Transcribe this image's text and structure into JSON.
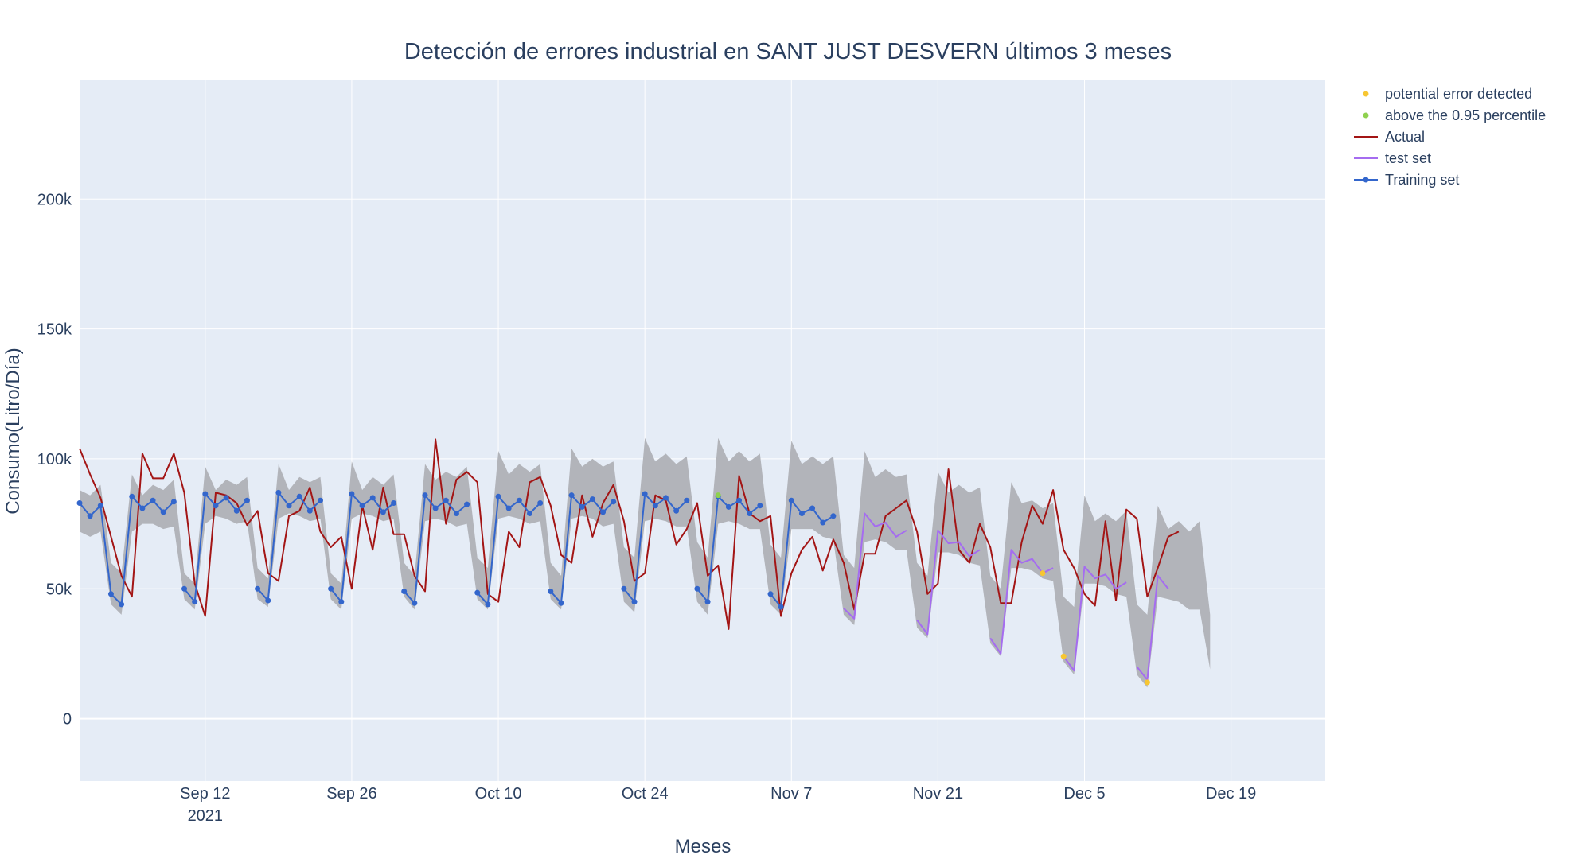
{
  "chart_data": {
    "type": "line",
    "title": "Detección de errores industrial en SANT JUST DESVERN últimos 3 meses",
    "xlabel": "Meses",
    "ylabel": "Consumo(Litro/Día)",
    "xlim": [
      "2021-08-31",
      "2021-12-28"
    ],
    "ylim": [
      -24000,
      246000
    ],
    "x_ticks": [
      {
        "date": "2021-09-12",
        "label": "Sep 12",
        "sublabel": "2021"
      },
      {
        "date": "2021-09-26",
        "label": "Sep 26",
        "sublabel": ""
      },
      {
        "date": "2021-10-10",
        "label": "Oct 10",
        "sublabel": ""
      },
      {
        "date": "2021-10-24",
        "label": "Oct 24",
        "sublabel": ""
      },
      {
        "date": "2021-11-07",
        "label": "Nov 7",
        "sublabel": ""
      },
      {
        "date": "2021-11-21",
        "label": "Nov 21",
        "sublabel": ""
      },
      {
        "date": "2021-12-05",
        "label": "Dec 5",
        "sublabel": ""
      },
      {
        "date": "2021-12-19",
        "label": "Dec 19",
        "sublabel": ""
      }
    ],
    "y_ticks": [
      {
        "value": 0,
        "label": "0"
      },
      {
        "value": 50000,
        "label": "50k"
      },
      {
        "value": 100000,
        "label": "100k"
      },
      {
        "value": 150000,
        "label": "150k"
      },
      {
        "value": 200000,
        "label": "200k"
      }
    ],
    "legend_position": "top-right, outside plot",
    "colors": {
      "plot_bg": "#e5ecf6",
      "grid": "#ffffff",
      "band": "#b2b4ba",
      "actual": "#a31515",
      "test": "#a56cf0",
      "training": "#3366cc",
      "error": "#f7c632",
      "above": "#8fd14f"
    },
    "legend": [
      {
        "name": "potential error detected",
        "kind": "dot",
        "color": "#f7c632"
      },
      {
        "name": "above the 0.95 percentile",
        "kind": "dot",
        "color": "#8fd14f"
      },
      {
        "name": "Actual",
        "kind": "line",
        "color": "#a31515"
      },
      {
        "name": "test set",
        "kind": "line",
        "color": "#a56cf0"
      },
      {
        "name": "Training set",
        "kind": "line-marker",
        "color": "#3366cc"
      }
    ],
    "start_date": "2021-08-31",
    "actual": [
      104000,
      94000,
      85000,
      70000,
      55000,
      47000,
      102000,
      92500,
      92500,
      102000,
      87000,
      52000,
      39500,
      87000,
      86000,
      83000,
      74500,
      80000,
      56000,
      53000,
      78000,
      80000,
      89000,
      72000,
      66000,
      70000,
      50000,
      82000,
      65000,
      89000,
      71000,
      71000,
      55000,
      49000,
      107500,
      75000,
      92000,
      95000,
      91000,
      48000,
      45000,
      72000,
      66000,
      91000,
      93000,
      82000,
      63000,
      60000,
      86000,
      70000,
      83000,
      90000,
      76000,
      53000,
      56000,
      86000,
      84000,
      67000,
      73000,
      83000,
      55000,
      59000,
      34500,
      93500,
      79000,
      76000,
      78000,
      39500,
      56000,
      65000,
      70000,
      57000,
      69000,
      60000,
      42000,
      63500,
      63500,
      78000,
      81000,
      84000,
      72000,
      48000,
      52000,
      96000,
      65000,
      60000,
      75000,
      66000,
      44500,
      44500,
      68000,
      82000,
      75000,
      88000,
      65000,
      58000,
      48000,
      43500,
      76000,
      45500,
      80500,
      77000,
      47000,
      58000,
      70000,
      72000
    ],
    "upper": [
      88000,
      86000,
      90000,
      60000,
      56000,
      94000,
      86000,
      90000,
      88000,
      92000,
      56000,
      52000,
      97000,
      88000,
      92000,
      90000,
      93000,
      58000,
      54000,
      98000,
      88000,
      93000,
      91000,
      93000,
      56000,
      52000,
      99000,
      88000,
      93000,
      90000,
      94000,
      60000,
      55000,
      98000,
      92000,
      95000,
      93000,
      97000,
      62000,
      58000,
      103000,
      94000,
      98000,
      95000,
      98000,
      60000,
      55000,
      104000,
      97000,
      100000,
      97000,
      99000,
      66000,
      62000,
      108000,
      99000,
      102000,
      98000,
      101000,
      68000,
      62000,
      108000,
      99000,
      103000,
      99000,
      102000,
      67000,
      62000,
      107000,
      98000,
      101000,
      98000,
      101000,
      63000,
      58000,
      103000,
      93000,
      96000,
      93000,
      94000,
      60000,
      55000,
      95000,
      87000,
      90000,
      87000,
      89000,
      55000,
      50000,
      91000,
      83000,
      84000,
      81000,
      83000,
      47000,
      43000,
      86000,
      76000,
      79000,
      76000,
      80000,
      44000,
      40000,
      82000,
      73000,
      76000,
      72000,
      76000,
      40000
    ],
    "lower": [
      72000,
      70000,
      72000,
      44000,
      40000,
      72000,
      75000,
      75000,
      73000,
      74000,
      46000,
      42000,
      75000,
      78000,
      77000,
      75000,
      76000,
      46000,
      43000,
      77000,
      79000,
      78000,
      76000,
      77000,
      46000,
      42000,
      77000,
      79000,
      78000,
      76000,
      77000,
      47000,
      42000,
      76000,
      77000,
      76000,
      74000,
      75000,
      46000,
      42000,
      77000,
      78000,
      77000,
      75000,
      76000,
      46000,
      42000,
      77000,
      78000,
      77000,
      74000,
      75000,
      45000,
      41000,
      76000,
      77000,
      76000,
      74000,
      74000,
      45000,
      40000,
      75000,
      76000,
      75000,
      73000,
      73000,
      44000,
      40000,
      73000,
      73000,
      73000,
      70000,
      69000,
      40000,
      36000,
      68000,
      69000,
      68000,
      65000,
      65000,
      35000,
      31000,
      64000,
      64000,
      63000,
      60000,
      59000,
      29000,
      24000,
      58000,
      58000,
      57000,
      54000,
      53000,
      22000,
      17000,
      52000,
      52000,
      51000,
      48000,
      47000,
      17000,
      12000,
      47000,
      46000,
      45000,
      42000,
      42000,
      19000
    ],
    "training": [
      {
        "start": 0,
        "values": [
          83000,
          78000,
          82000,
          48000,
          44000,
          85500,
          81000,
          84000,
          79500,
          83500
        ]
      },
      {
        "start": 10,
        "values": [
          50000,
          45000,
          86500,
          82000,
          85000,
          80000,
          84000
        ]
      },
      {
        "start": 17,
        "values": [
          50000,
          45500,
          87000,
          82000,
          85500,
          80000,
          84000
        ]
      },
      {
        "start": 24,
        "values": [
          50000,
          45000,
          86500,
          82000,
          85000,
          79500,
          83000
        ]
      },
      {
        "start": 31,
        "values": [
          49000,
          44500,
          86000,
          81000,
          84000,
          79000,
          82500
        ]
      },
      {
        "start": 38,
        "values": [
          48500,
          44000,
          85500,
          81000,
          84000,
          79000,
          83000
        ]
      },
      {
        "start": 45,
        "values": [
          49000,
          44500,
          86000,
          81500,
          84500,
          79500,
          83500
        ]
      },
      {
        "start": 52,
        "values": [
          50000,
          45000,
          86500,
          82000,
          85000,
          80000,
          84000
        ]
      },
      {
        "start": 59,
        "values": [
          50000,
          45000,
          85500,
          81500,
          84000,
          79000,
          82000
        ]
      },
      {
        "start": 66,
        "values": [
          48000,
          43000,
          84000,
          79000,
          81000,
          75500,
          78000
        ]
      }
    ],
    "test": [
      {
        "start": 73,
        "values": [
          42500,
          38500,
          79000,
          74000,
          75500,
          70000,
          72500
        ]
      },
      {
        "start": 80,
        "values": [
          38000,
          32500,
          72500,
          67500,
          68000,
          62500,
          65000
        ]
      },
      {
        "start": 87,
        "values": [
          31000,
          25000,
          65000,
          60000,
          61500,
          56000,
          58000
        ]
      },
      {
        "start": 94,
        "values": [
          24000,
          18500,
          58500,
          54000,
          55500,
          50000,
          52500
        ]
      },
      {
        "start": 101,
        "values": [
          20000,
          15000,
          55000,
          50000
        ]
      }
    ],
    "errors": [
      {
        "day": 92,
        "value": 56000
      },
      {
        "day": 94,
        "value": 24000
      },
      {
        "day": 102,
        "value": 14000
      }
    ],
    "above_percentile": [
      {
        "day": 61,
        "value": 86000
      }
    ]
  }
}
